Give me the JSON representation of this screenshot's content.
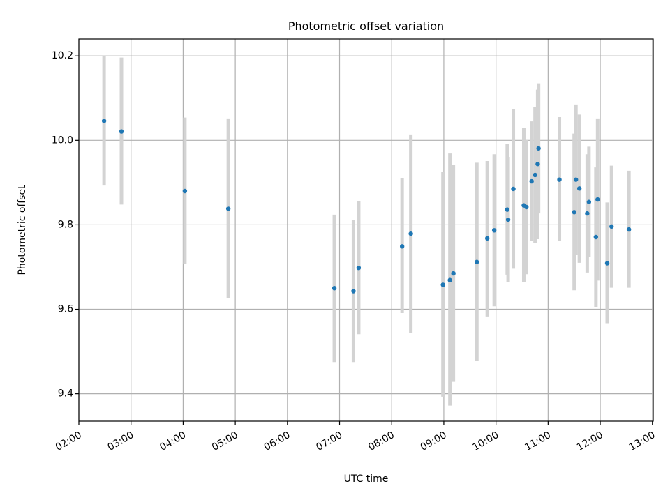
{
  "chart_data": {
    "type": "scatter",
    "title": "Photometric offset variation",
    "xlabel": "UTC time",
    "ylabel": "Photometric offset",
    "x_tick_labels": [
      "02:00",
      "03:00",
      "04:00",
      "05:00",
      "06:00",
      "07:00",
      "08:00",
      "09:00",
      "10:00",
      "11:00",
      "12:00",
      "13:00"
    ],
    "y_tick_labels": [
      "9.4",
      "9.6",
      "9.8",
      "10.0",
      "10.2"
    ],
    "xlim": [
      "02:00",
      "13:01"
    ],
    "ylim": [
      9.335,
      10.24
    ],
    "grid": true,
    "colors": {
      "marker": "#1f77b4",
      "errorbar": "#d3d3d3"
    },
    "points": [
      {
        "x": "02:29",
        "y": 10.046,
        "low": 9.893,
        "high": 10.2
      },
      {
        "x": "02:49",
        "y": 10.021,
        "low": 9.848,
        "high": 10.196
      },
      {
        "x": "04:02",
        "y": 9.88,
        "low": 9.707,
        "high": 10.054
      },
      {
        "x": "04:52",
        "y": 9.838,
        "low": 9.627,
        "high": 10.052
      },
      {
        "x": "06:54",
        "y": 9.65,
        "low": 9.475,
        "high": 9.824
      },
      {
        "x": "07:16",
        "y": 9.643,
        "low": 9.475,
        "high": 9.811
      },
      {
        "x": "07:22",
        "y": 9.698,
        "low": 9.541,
        "high": 9.856
      },
      {
        "x": "08:12",
        "y": 9.749,
        "low": 9.591,
        "high": 9.91
      },
      {
        "x": "08:22",
        "y": 9.779,
        "low": 9.544,
        "high": 10.014
      },
      {
        "x": "08:59",
        "y": 9.658,
        "low": 9.393,
        "high": 9.925
      },
      {
        "x": "09:07",
        "y": 9.669,
        "low": 9.372,
        "high": 9.969
      },
      {
        "x": "09:11",
        "y": 9.685,
        "low": 9.428,
        "high": 9.941
      },
      {
        "x": "09:38",
        "y": 9.712,
        "low": 9.477,
        "high": 9.947
      },
      {
        "x": "09:50",
        "y": 9.768,
        "low": 9.583,
        "high": 9.951
      },
      {
        "x": "09:58",
        "y": 9.787,
        "low": 9.607,
        "high": 9.967
      },
      {
        "x": "10:13",
        "y": 9.836,
        "low": 9.682,
        "high": 9.991
      },
      {
        "x": "10:14",
        "y": 9.812,
        "low": 9.664,
        "high": 9.961
      },
      {
        "x": "10:20",
        "y": 9.885,
        "low": 9.696,
        "high": 10.074
      },
      {
        "x": "10:32",
        "y": 9.846,
        "low": 9.665,
        "high": 10.029
      },
      {
        "x": "10:35",
        "y": 9.842,
        "low": 9.683,
        "high": 10.001
      },
      {
        "x": "10:41",
        "y": 9.903,
        "low": 9.762,
        "high": 10.045
      },
      {
        "x": "10:45",
        "y": 9.918,
        "low": 9.757,
        "high": 10.079
      },
      {
        "x": "10:48",
        "y": 9.944,
        "low": 9.766,
        "high": 10.12
      },
      {
        "x": "10:49",
        "y": 9.981,
        "low": 9.827,
        "high": 10.135
      },
      {
        "x": "11:13",
        "y": 9.907,
        "low": 9.761,
        "high": 10.055
      },
      {
        "x": "11:30",
        "y": 9.83,
        "low": 9.645,
        "high": 10.016
      },
      {
        "x": "11:32",
        "y": 9.907,
        "low": 9.728,
        "high": 10.085
      },
      {
        "x": "11:36",
        "y": 9.886,
        "low": 9.71,
        "high": 10.061
      },
      {
        "x": "11:45",
        "y": 9.827,
        "low": 9.687,
        "high": 9.967
      },
      {
        "x": "11:47",
        "y": 9.854,
        "low": 9.724,
        "high": 9.985
      },
      {
        "x": "11:55",
        "y": 9.771,
        "low": 9.605,
        "high": 9.936
      },
      {
        "x": "11:57",
        "y": 9.86,
        "low": 9.668,
        "high": 10.052
      },
      {
        "x": "12:08",
        "y": 9.709,
        "low": 9.567,
        "high": 9.853
      },
      {
        "x": "12:13",
        "y": 9.796,
        "low": 9.651,
        "high": 9.94
      },
      {
        "x": "12:33",
        "y": 9.789,
        "low": 9.651,
        "high": 9.928
      }
    ]
  }
}
